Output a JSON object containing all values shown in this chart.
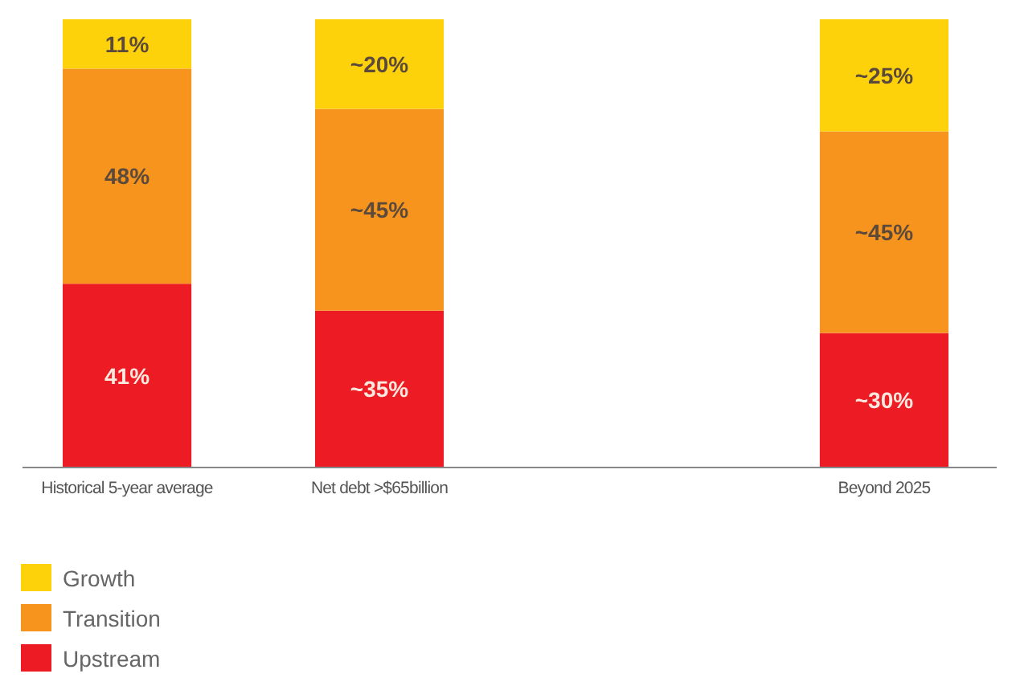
{
  "chart_data": {
    "type": "bar",
    "stacked": true,
    "categories": [
      "Historical 5-year average",
      "Net debt >$65billion",
      null,
      "Beyond 2025"
    ],
    "ylim": [
      0,
      100
    ],
    "tick_labels": "x",
    "legend": "bottom left",
    "series": [
      {
        "name": "Upstream",
        "color": "#ed1c24",
        "values": [
          41,
          35,
          null,
          30
        ],
        "value_labels": [
          "41%",
          "~35%",
          null,
          "~30%"
        ]
      },
      {
        "name": "Transition",
        "color": "#f7941d",
        "values": [
          48,
          45,
          null,
          45
        ],
        "value_labels": [
          "48%",
          "~45%",
          null,
          "~45%"
        ]
      },
      {
        "name": "Growth",
        "color": "#fdd20a",
        "values": [
          11,
          20,
          null,
          25
        ],
        "value_labels": [
          "11%",
          "~20%",
          null,
          "~25%"
        ]
      }
    ]
  }
}
